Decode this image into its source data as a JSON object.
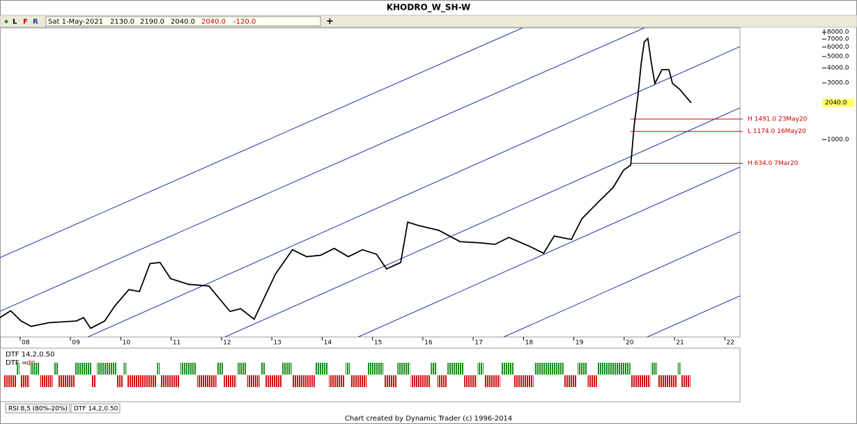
{
  "window_title": "KHODRO_W_SH-W",
  "toolbar": {
    "buttons": [
      "L",
      "F",
      "R"
    ],
    "date": "Sat 1-May-2021",
    "open": "2130.0",
    "high": "2190.0",
    "low": "2040.0",
    "close": "2040.0",
    "change": "-120.0"
  },
  "chart_data": {
    "type": "line",
    "log_y": true,
    "grid": false,
    "x": [
      2007.6,
      2007.81,
      2008.02,
      2008.22,
      2008.57,
      2009.12,
      2009.26,
      2009.4,
      2009.68,
      2009.88,
      2010.16,
      2010.37,
      2010.58,
      2010.78,
      2010.99,
      2011.34,
      2011.75,
      2012.17,
      2012.38,
      2012.65,
      2012.86,
      2013.07,
      2013.41,
      2013.69,
      2013.97,
      2014.24,
      2014.52,
      2014.8,
      2015.08,
      2015.28,
      2015.56,
      2015.7,
      2015.91,
      2016.32,
      2016.74,
      2017.15,
      2017.43,
      2017.71,
      2018.12,
      2018.4,
      2018.61,
      2018.95,
      2019.16,
      2019.5,
      2019.78,
      2019.99,
      2020.13,
      2020.2,
      2020.27,
      2020.34,
      2020.4,
      2020.47,
      2020.54,
      2020.61,
      2020.75,
      2020.89,
      2020.96,
      2021.1,
      2021.33
    ],
    "series": [
      {
        "name": "KHODRO",
        "color": "#000000",
        "values": [
          32,
          36.5,
          30,
          27,
          29,
          30,
          32,
          26,
          30,
          40,
          55,
          53,
          91,
          93,
          68,
          61,
          59,
          36,
          38,
          31,
          48,
          74,
          119,
          104,
          107,
          122,
          104,
          119,
          109,
          82,
          93,
          203,
          190,
          173,
          139,
          136,
          132,
          151,
          127,
          111,
          155,
          145,
          217,
          303,
          396,
          555,
          610,
          1327,
          2270,
          4436,
          6624,
          7096,
          4436,
          2965,
          3873,
          3873,
          2965,
          2661,
          2040
        ]
      }
    ],
    "xlim": [
      2007.6,
      2022.3
    ],
    "xticks": [
      {
        "value": 2008,
        "label": "08"
      },
      {
        "value": 2009,
        "label": "09"
      },
      {
        "value": 2010,
        "label": "10"
      },
      {
        "value": 2011,
        "label": "11"
      },
      {
        "value": 2012,
        "label": "12"
      },
      {
        "value": 2013,
        "label": "13"
      },
      {
        "value": 2014,
        "label": "14"
      },
      {
        "value": 2015,
        "label": "15"
      },
      {
        "value": 2016,
        "label": "16"
      },
      {
        "value": 2017,
        "label": "17"
      },
      {
        "value": 2018,
        "label": "18"
      },
      {
        "value": 2019,
        "label": "19"
      },
      {
        "value": 2020,
        "label": "20"
      },
      {
        "value": 2021,
        "label": "21"
      },
      {
        "value": 2022,
        "label": "22"
      }
    ],
    "ylim": [
      22,
      8700
    ],
    "yticks": [
      {
        "value": 8000,
        "label": "8000.0"
      },
      {
        "value": 7000,
        "label": "7000.0"
      },
      {
        "value": 6000,
        "label": "6000.0"
      },
      {
        "value": 5000,
        "label": "5000.0"
      },
      {
        "value": 4000,
        "label": "4000.0"
      },
      {
        "value": 3000,
        "label": "3000.0"
      },
      {
        "value": 1000,
        "label": "1000.0"
      }
    ],
    "last_price": {
      "value": 2040,
      "label": "2040.0"
    },
    "annotations": [
      {
        "value": 1491,
        "label": "H 1491.0 23May20",
        "color": "#cc0000"
      },
      {
        "value": 1174,
        "label": "L 1174.0 16May20",
        "color": "#cc0000"
      },
      {
        "value": 634,
        "label": "H 634.0 7Mar20",
        "color": "#cc0000"
      }
    ]
  },
  "indicator": {
    "title": "DTF 14,2,0.50",
    "state_label": "DTF =",
    "state": "dn",
    "up_color": "#1a8a1a",
    "down_color": "#cc1111",
    "runs": [
      -8,
      2,
      -6,
      6,
      -8,
      3,
      -10,
      10,
      -3,
      12,
      -4,
      2,
      -18,
      2,
      -12,
      10,
      -12,
      4,
      -8,
      6,
      -8,
      3,
      -10,
      6,
      -14,
      8,
      -10,
      3,
      -10,
      10,
      -8,
      8,
      -12,
      4,
      -6,
      10,
      -8,
      4,
      -10,
      8,
      -12,
      18,
      -8,
      6,
      -6,
      20,
      -12,
      4,
      -12,
      2,
      -6
    ]
  },
  "tabs": [
    "RSI 8,5 (80%-20%)",
    "DTF 14,2,0.50"
  ],
  "footer": "Chart created by Dynamic Trader  (c) 1996-2014"
}
